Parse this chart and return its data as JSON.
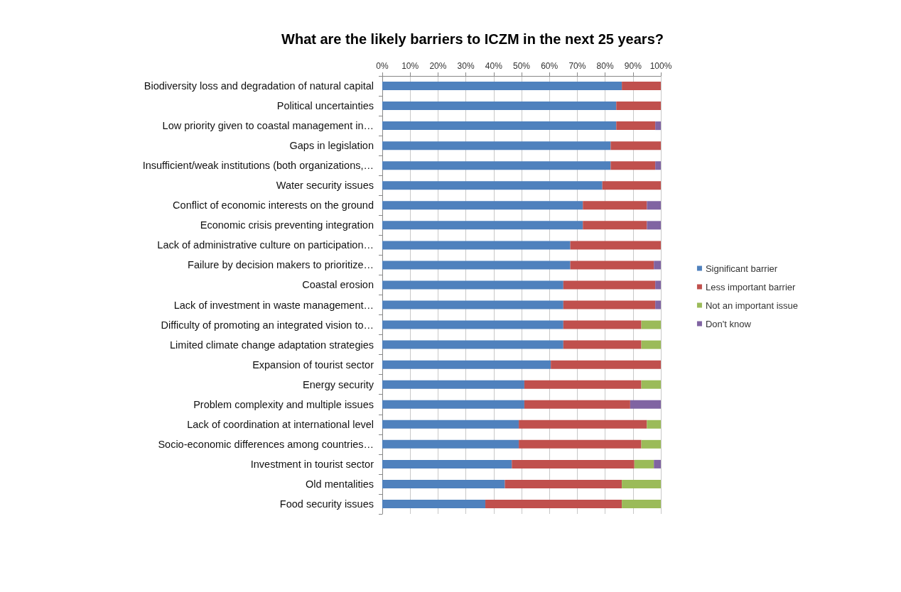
{
  "chart_data": {
    "type": "bar",
    "orientation": "horizontal",
    "stacked": true,
    "title": "What are the likely barriers to ICZM in the next 25 years?",
    "categories": [
      "Biodiversity loss and degradation of natural capital",
      "Political uncertainties",
      "Low priority given to coastal management in…",
      "Gaps in legislation",
      "Insufficient/weak institutions (both organizations,…",
      "Water security issues",
      "Conflict of economic interests on the ground",
      "Economic crisis preventing integration",
      "Lack of administrative culture on participation…",
      "Failure by decision makers to prioritize…",
      "Coastal erosion",
      "Lack of investment in waste management…",
      "Difficulty of promoting an integrated vision to…",
      "Limited climate change adaptation strategies",
      "Expansion of tourist sector",
      "Energy security",
      "Problem complexity and multiple issues",
      "Lack of coordination at international level",
      "Socio-economic differences among countries…",
      "Investment in tourist sector",
      "Old mentalities",
      "Food security issues"
    ],
    "series": [
      {
        "name": "Significant barrier",
        "color": "#4f81bd",
        "values": [
          86,
          84,
          84,
          82,
          82,
          79,
          72,
          72,
          67.5,
          67.5,
          65,
          65,
          65,
          65,
          60.5,
          51,
          51,
          49,
          49,
          46.5,
          44,
          37
        ]
      },
      {
        "name": "Less important barrier",
        "color": "#c0504d",
        "values": [
          14,
          16,
          14,
          18,
          16,
          21,
          23,
          23,
          32.5,
          30,
          33,
          33,
          28,
          28,
          39.5,
          42,
          38,
          46,
          44,
          44,
          42,
          49
        ]
      },
      {
        "name": "Not an important issue",
        "color": "#9bbb59",
        "values": [
          0,
          0,
          0,
          0,
          0,
          0,
          0,
          0,
          0,
          0,
          0,
          0,
          7,
          7,
          0,
          7,
          0,
          5,
          7,
          7,
          14,
          14
        ]
      },
      {
        "name": "Don't know",
        "color": "#8064a2",
        "values": [
          0,
          0,
          2,
          0,
          2,
          0,
          5,
          5,
          0,
          2.5,
          2,
          2,
          0,
          0,
          0,
          0,
          11,
          0,
          0,
          2.5,
          0,
          0
        ]
      }
    ],
    "xlim": [
      0,
      100
    ],
    "xticks": [
      {
        "value": 0,
        "label": "0%"
      },
      {
        "value": 10,
        "label": "10%"
      },
      {
        "value": 20,
        "label": "20%"
      },
      {
        "value": 30,
        "label": "30%"
      },
      {
        "value": 40,
        "label": "40%"
      },
      {
        "value": 50,
        "label": "50%"
      },
      {
        "value": 60,
        "label": "60%"
      },
      {
        "value": 70,
        "label": "70%"
      },
      {
        "value": 80,
        "label": "80%"
      },
      {
        "value": 90,
        "label": "90%"
      },
      {
        "value": 100,
        "label": "100%"
      }
    ],
    "grid": "x",
    "legend": "right"
  }
}
